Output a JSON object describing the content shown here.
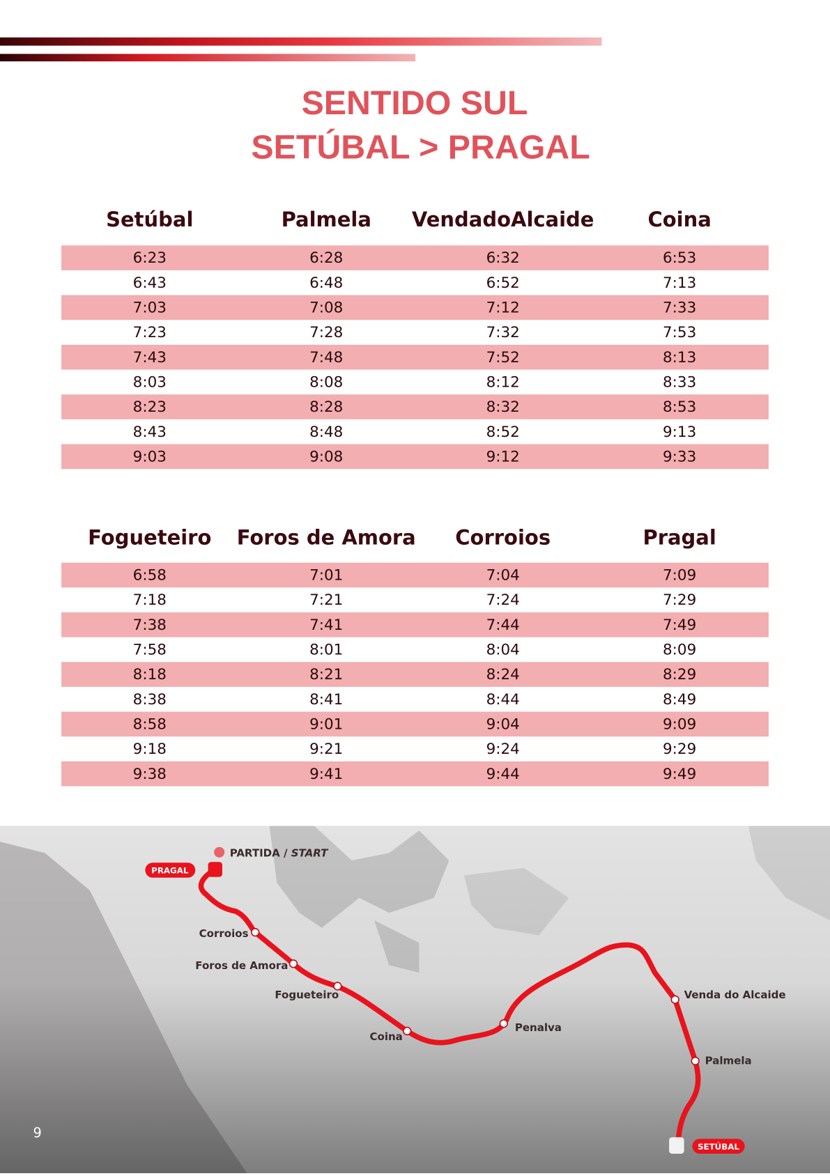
{
  "title": {
    "line1": "SENTIDO SUL",
    "line2": "SETÚBAL > PRAGAL"
  },
  "table1": {
    "header": [
      "Setúbal",
      "Palmela",
      "VendadoAlcaide",
      "Coina"
    ],
    "rows": [
      [
        "6:23",
        "6:28",
        "6:32",
        "6:53"
      ],
      [
        "6:43",
        "6:48",
        "6:52",
        "7:13"
      ],
      [
        "7:03",
        "7:08",
        "7:12",
        "7:33"
      ],
      [
        "7:23",
        "7:28",
        "7:32",
        "7:53"
      ],
      [
        "7:43",
        "7:48",
        "7:52",
        "8:13"
      ],
      [
        "8:03",
        "8:08",
        "8:12",
        "8:33"
      ],
      [
        "8:23",
        "8:28",
        "8:32",
        "8:53"
      ],
      [
        "8:43",
        "8:48",
        "8:52",
        "9:13"
      ],
      [
        "9:03",
        "9:08",
        "9:12",
        "9:33"
      ]
    ]
  },
  "table2": {
    "header": [
      "Fogueteiro",
      "Foros de Amora",
      "Corroios",
      "Pragal"
    ],
    "rows": [
      [
        "6:58",
        "7:01",
        "7:04",
        "7:09"
      ],
      [
        "7:18",
        "7:21",
        "7:24",
        "7:29"
      ],
      [
        "7:38",
        "7:41",
        "7:44",
        "7:49"
      ],
      [
        "7:58",
        "8:01",
        "8:04",
        "8:09"
      ],
      [
        "8:18",
        "8:21",
        "8:24",
        "8:29"
      ],
      [
        "8:38",
        "8:41",
        "8:44",
        "8:49"
      ],
      [
        "8:58",
        "9:01",
        "9:04",
        "9:09"
      ],
      [
        "9:18",
        "9:21",
        "9:24",
        "9:29"
      ],
      [
        "9:38",
        "9:41",
        "9:44",
        "9:49"
      ]
    ]
  },
  "map": {
    "start_label": "PARTIDA /",
    "start_label_en": "START",
    "stations": {
      "pragal": "PRAGAL",
      "corroios": "Corroios",
      "foros": "Foros de Amora",
      "fogueteiro": "Fogueteiro",
      "coina": "Coina",
      "penalva": "Penalva",
      "venda": "Venda do Alcaide",
      "palmela": "Palmela",
      "setubal": "SETÚBAL"
    }
  },
  "page_number": "9"
}
